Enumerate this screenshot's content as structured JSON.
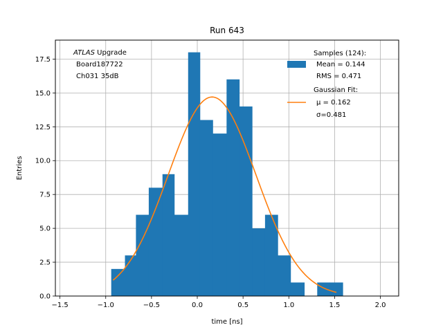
{
  "chart_data": {
    "type": "bar",
    "title": "Run 643",
    "xlabel": "time [ns]",
    "ylabel": "Entries",
    "xlim": [
      -1.55,
      2.2
    ],
    "ylim": [
      0,
      18.9
    ],
    "grid": true,
    "legend_position": "top-right",
    "x_ticks": [
      {
        "value": -1.5,
        "label": "−1.5"
      },
      {
        "value": -1.0,
        "label": "−1.0"
      },
      {
        "value": -0.5,
        "label": "−0.5"
      },
      {
        "value": 0.0,
        "label": "0.0"
      },
      {
        "value": 0.5,
        "label": "0.5"
      },
      {
        "value": 1.0,
        "label": "1.0"
      },
      {
        "value": 1.5,
        "label": "1.5"
      },
      {
        "value": 2.0,
        "label": "2.0"
      }
    ],
    "y_ticks": [
      {
        "value": 0,
        "label": "0.0"
      },
      {
        "value": 2.5,
        "label": "2.5"
      },
      {
        "value": 5,
        "label": "5.0"
      },
      {
        "value": 7.5,
        "label": "7.5"
      },
      {
        "value": 10,
        "label": "10.0"
      },
      {
        "value": 12.5,
        "label": "12.5"
      },
      {
        "value": 15,
        "label": "15.0"
      },
      {
        "value": 17.5,
        "label": "17.5"
      }
    ],
    "histogram": {
      "name": "Samples (124):",
      "color": "#1f77b4",
      "bins": [
        {
          "x0": -0.94,
          "x1": -0.79,
          "count": 2
        },
        {
          "x0": -0.79,
          "x1": -0.67,
          "count": 3
        },
        {
          "x0": -0.67,
          "x1": -0.53,
          "count": 6
        },
        {
          "x0": -0.53,
          "x1": -0.38,
          "count": 8
        },
        {
          "x0": -0.38,
          "x1": -0.25,
          "count": 9
        },
        {
          "x0": -0.25,
          "x1": -0.1,
          "count": 6
        },
        {
          "x0": -0.1,
          "x1": 0.03,
          "count": 18
        },
        {
          "x0": 0.03,
          "x1": 0.17,
          "count": 13
        },
        {
          "x0": 0.17,
          "x1": 0.32,
          "count": 12
        },
        {
          "x0": 0.32,
          "x1": 0.46,
          "count": 16
        },
        {
          "x0": 0.46,
          "x1": 0.6,
          "count": 14
        },
        {
          "x0": 0.6,
          "x1": 0.74,
          "count": 5
        },
        {
          "x0": 0.74,
          "x1": 0.88,
          "count": 6
        },
        {
          "x0": 0.88,
          "x1": 1.02,
          "count": 3
        },
        {
          "x0": 1.02,
          "x1": 1.17,
          "count": 1
        },
        {
          "x0": 1.17,
          "x1": 1.31,
          "count": 0
        },
        {
          "x0": 1.31,
          "x1": 1.45,
          "count": 1
        },
        {
          "x0": 1.45,
          "x1": 1.59,
          "count": 1
        }
      ]
    },
    "fit": {
      "name": "Gaussian Fit:",
      "color": "#ff7f0e",
      "type": "gaussian",
      "mu": 0.162,
      "sigma": 0.481,
      "amplitude": 14.7,
      "x_range": [
        -0.92,
        1.52
      ]
    },
    "legend": {
      "samples_title": "Samples (124):",
      "samples_mean": "Mean = 0.144",
      "samples_rms": "RMS = 0.471",
      "fit_title": "Gaussian Fit:",
      "fit_mu": "μ = 0.162",
      "fit_sigma": "σ=0.481"
    },
    "annotation": {
      "atlas": "ATLAS",
      "upgrade": "Upgrade",
      "board": "Board187722",
      "channel": "Ch031 35dB"
    }
  }
}
